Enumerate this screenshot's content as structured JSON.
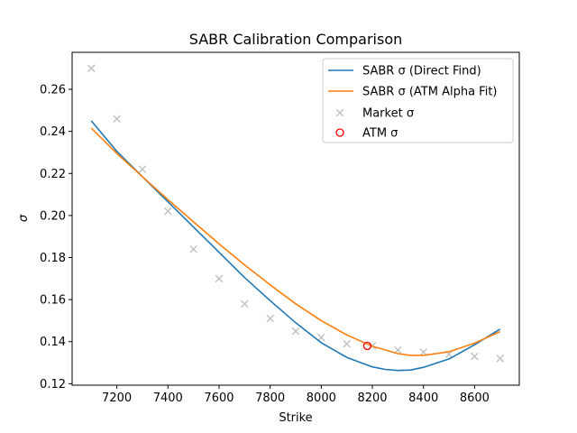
{
  "chart_data": {
    "type": "line",
    "title": "SABR Calibration Comparison",
    "xlabel": "Strike",
    "ylabel": "σ",
    "xlim": [
      7025,
      8775
    ],
    "ylim": [
      0.1193,
      0.2776
    ],
    "xticks": [
      7200,
      7400,
      7600,
      7800,
      8000,
      8200,
      8400,
      8600
    ],
    "yticks": [
      0.12,
      0.14,
      0.16,
      0.18,
      0.2,
      0.22,
      0.24,
      0.26
    ],
    "grid": false,
    "legend_position": "top-right",
    "series": [
      {
        "name": "SABR σ (Direct Find)",
        "kind": "line",
        "color": "#1f77b4",
        "x": [
          7100,
          7200,
          7300,
          7400,
          7500,
          7600,
          7700,
          7800,
          7900,
          8000,
          8100,
          8200,
          8250,
          8300,
          8350,
          8400,
          8500,
          8600,
          8700
        ],
        "values": [
          0.245,
          0.2305,
          0.2185,
          0.2065,
          0.1945,
          0.1825,
          0.1705,
          0.1595,
          0.149,
          0.1395,
          0.1325,
          0.128,
          0.1268,
          0.1263,
          0.1265,
          0.1278,
          0.1318,
          0.1385,
          0.146
        ]
      },
      {
        "name": "SABR σ (ATM Alpha Fit)",
        "kind": "line",
        "color": "#ff7f0e",
        "x": [
          7100,
          7200,
          7300,
          7400,
          7500,
          7600,
          7700,
          7800,
          7900,
          8000,
          8100,
          8200,
          8300,
          8350,
          8400,
          8500,
          8600,
          8700
        ],
        "values": [
          0.2415,
          0.2295,
          0.2185,
          0.2075,
          0.197,
          0.1865,
          0.1765,
          0.167,
          0.158,
          0.15,
          0.1432,
          0.1378,
          0.1343,
          0.1335,
          0.1335,
          0.1352,
          0.1393,
          0.1448
        ]
      },
      {
        "name": "Market σ",
        "kind": "scatter-x",
        "color": "#c0c0c0",
        "x": [
          7100,
          7200,
          7300,
          7400,
          7500,
          7600,
          7700,
          7800,
          7900,
          8000,
          8100,
          8200,
          8300,
          8400,
          8500,
          8600,
          8700
        ],
        "values": [
          0.27,
          0.246,
          0.222,
          0.202,
          0.184,
          0.17,
          0.158,
          0.151,
          0.145,
          0.142,
          0.139,
          0.138,
          0.136,
          0.135,
          0.134,
          0.133,
          0.132
        ]
      },
      {
        "name": "ATM σ",
        "kind": "scatter-circle",
        "color": "#ff0000",
        "x": [
          8180
        ],
        "values": [
          0.138
        ]
      }
    ]
  }
}
